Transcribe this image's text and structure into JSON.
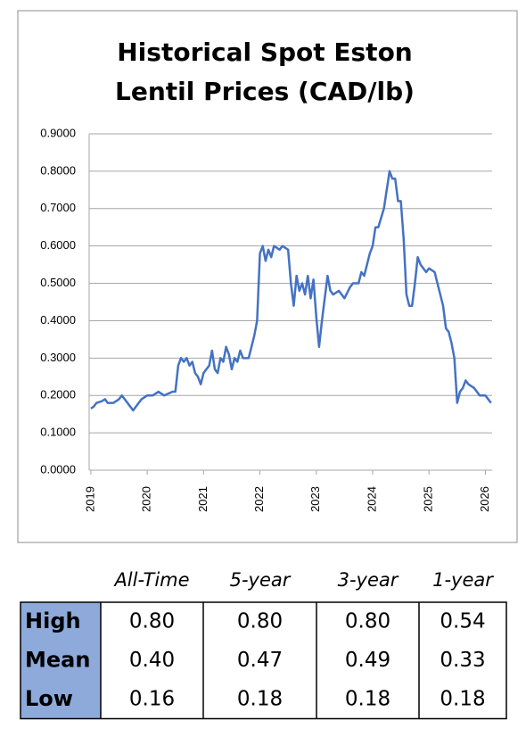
{
  "chart_data": {
    "type": "line",
    "title": "Historical Spot Eston Lentil Prices (CAD/lb)",
    "x": [
      2019.0,
      2019.05,
      2019.1,
      2019.2,
      2019.25,
      2019.3,
      2019.4,
      2019.5,
      2019.55,
      2019.6,
      2019.7,
      2019.75,
      2019.8,
      2019.9,
      2020.0,
      2020.1,
      2020.2,
      2020.3,
      2020.45,
      2020.5,
      2020.55,
      2020.6,
      2020.65,
      2020.7,
      2020.75,
      2020.8,
      2020.85,
      2020.9,
      2020.95,
      2021.0,
      2021.05,
      2021.1,
      2021.15,
      2021.2,
      2021.25,
      2021.3,
      2021.35,
      2021.4,
      2021.45,
      2021.5,
      2021.55,
      2021.6,
      2021.65,
      2021.7,
      2021.8,
      2021.9,
      2021.95,
      2022.0,
      2022.05,
      2022.1,
      2022.15,
      2022.2,
      2022.25,
      2022.35,
      2022.4,
      2022.5,
      2022.55,
      2022.6,
      2022.65,
      2022.7,
      2022.75,
      2022.8,
      2022.85,
      2022.9,
      2022.95,
      2023.0,
      2023.05,
      2023.1,
      2023.15,
      2023.2,
      2023.25,
      2023.3,
      2023.4,
      2023.5,
      2023.6,
      2023.65,
      2023.75,
      2023.8,
      2023.85,
      2023.9,
      2023.95,
      2024.0,
      2024.05,
      2024.1,
      2024.2,
      2024.25,
      2024.3,
      2024.35,
      2024.4,
      2024.45,
      2024.5,
      2024.55,
      2024.6,
      2024.65,
      2024.7,
      2024.75,
      2024.8,
      2024.85,
      2024.95,
      2025.0,
      2025.1,
      2025.15,
      2025.2,
      2025.25,
      2025.3,
      2025.35,
      2025.4,
      2025.45,
      2025.5,
      2025.55,
      2025.6,
      2025.65,
      2025.7,
      2025.8,
      2025.9,
      2026.0,
      2026.05,
      2026.1
    ],
    "series": [
      {
        "color": "#4472c4",
        "values": [
          0.165,
          0.17,
          0.18,
          0.185,
          0.19,
          0.18,
          0.18,
          0.19,
          0.2,
          0.19,
          0.17,
          0.16,
          0.17,
          0.19,
          0.2,
          0.2,
          0.21,
          0.2,
          0.21,
          0.21,
          0.28,
          0.3,
          0.29,
          0.3,
          0.28,
          0.29,
          0.26,
          0.25,
          0.23,
          0.26,
          0.27,
          0.28,
          0.32,
          0.27,
          0.26,
          0.3,
          0.29,
          0.33,
          0.31,
          0.27,
          0.3,
          0.29,
          0.32,
          0.3,
          0.3,
          0.36,
          0.4,
          0.58,
          0.6,
          0.56,
          0.59,
          0.57,
          0.6,
          0.59,
          0.6,
          0.59,
          0.5,
          0.44,
          0.52,
          0.48,
          0.5,
          0.47,
          0.52,
          0.46,
          0.51,
          0.41,
          0.33,
          0.4,
          0.46,
          0.52,
          0.48,
          0.47,
          0.48,
          0.46,
          0.49,
          0.5,
          0.5,
          0.53,
          0.52,
          0.55,
          0.58,
          0.6,
          0.65,
          0.65,
          0.7,
          0.75,
          0.8,
          0.78,
          0.78,
          0.72,
          0.72,
          0.62,
          0.47,
          0.44,
          0.44,
          0.5,
          0.57,
          0.55,
          0.53,
          0.54,
          0.53,
          0.5,
          0.47,
          0.44,
          0.38,
          0.37,
          0.34,
          0.3,
          0.18,
          0.21,
          0.22,
          0.24,
          0.23,
          0.22,
          0.2,
          0.2,
          0.19,
          0.18
        ]
      }
    ],
    "xlim": [
      2018.97,
      2026.12
    ],
    "xticks": [
      2019,
      2020,
      2021,
      2022,
      2023,
      2024,
      2025,
      2026
    ],
    "ylim": [
      0,
      0.9
    ],
    "yticks": [
      {
        "value": 0,
        "label": "0.0000"
      },
      {
        "value": 0.1,
        "label": "0.1000"
      },
      {
        "value": 0.2,
        "label": "0.2000"
      },
      {
        "value": 0.3,
        "label": "0.3000"
      },
      {
        "value": 0.4,
        "label": "0.4000"
      },
      {
        "value": 0.5,
        "label": "0.5000"
      },
      {
        "value": 0.6,
        "label": "0.6000"
      },
      {
        "value": 0.7,
        "label": "0.7000"
      },
      {
        "value": 0.8,
        "label": "0.8000"
      },
      {
        "value": 0.9,
        "label": "0.9000"
      }
    ],
    "grid": true
  },
  "table": {
    "columns": [
      "All-Time",
      "5-year",
      "3-year",
      "1-year"
    ],
    "rows": [
      [
        "High",
        "0.80",
        "0.80",
        "0.80",
        "0.54"
      ],
      [
        "Mean",
        "0.40",
        "0.47",
        "0.49",
        "0.33"
      ],
      [
        "Low",
        "0.16",
        "0.18",
        "0.18",
        "0.18"
      ]
    ]
  }
}
